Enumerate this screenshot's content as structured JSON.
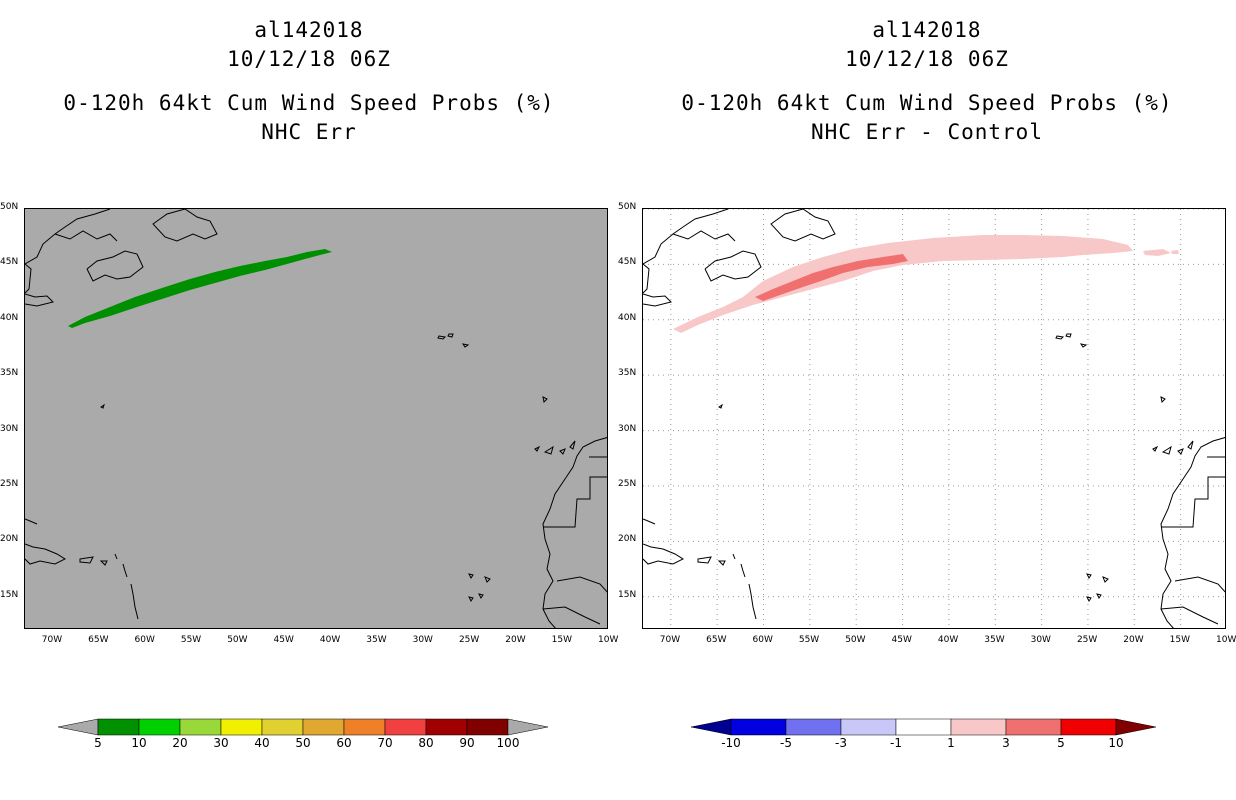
{
  "left_panel": {
    "storm_id": "al142018",
    "datetime": "10/12/18 06Z",
    "product": "0-120h 64kt Cum Wind Speed Probs (%)",
    "subtitle": "NHC Err",
    "map_background": "#aaaaaa",
    "swath_color": "#008f00"
  },
  "right_panel": {
    "storm_id": "al142018",
    "datetime": "10/12/18 06Z",
    "product": "0-120h 64kt Cum Wind Speed Probs (%)",
    "subtitle": "NHC Err - Control",
    "map_background": "#ffffff",
    "gridlines": true
  },
  "axes": {
    "lon_labels": [
      "70W",
      "65W",
      "60W",
      "55W",
      "50W",
      "45W",
      "40W",
      "35W",
      "30W",
      "25W",
      "20W",
      "15W",
      "10W"
    ],
    "lat_labels": [
      "50N",
      "45N",
      "40N",
      "35N",
      "30N",
      "25N",
      "20N",
      "15N"
    ],
    "lon_range": [
      -73,
      -10
    ],
    "lat_range": [
      12,
      50
    ]
  },
  "left_colorbar": {
    "labels": [
      "5",
      "10",
      "20",
      "30",
      "40",
      "50",
      "60",
      "70",
      "80",
      "90",
      "100"
    ],
    "colors": [
      "#009000",
      "#00d000",
      "#98d838",
      "#f0f000",
      "#e0d030",
      "#e0a830",
      "#f08028",
      "#f04040",
      "#a00000",
      "#800000",
      "#9020e0"
    ],
    "end_color": "#aaaaaa"
  },
  "right_colorbar": {
    "labels": [
      "-10",
      "-5",
      "-3",
      "-1",
      "1",
      "3",
      "5",
      "10"
    ],
    "colors": [
      "#0000e0",
      "#7070f0",
      "#c8c8f8",
      "#ffffff",
      "#f8c8c8",
      "#f07070",
      "#f00000"
    ],
    "low_end_color": "#000090",
    "high_end_color": "#800000"
  }
}
